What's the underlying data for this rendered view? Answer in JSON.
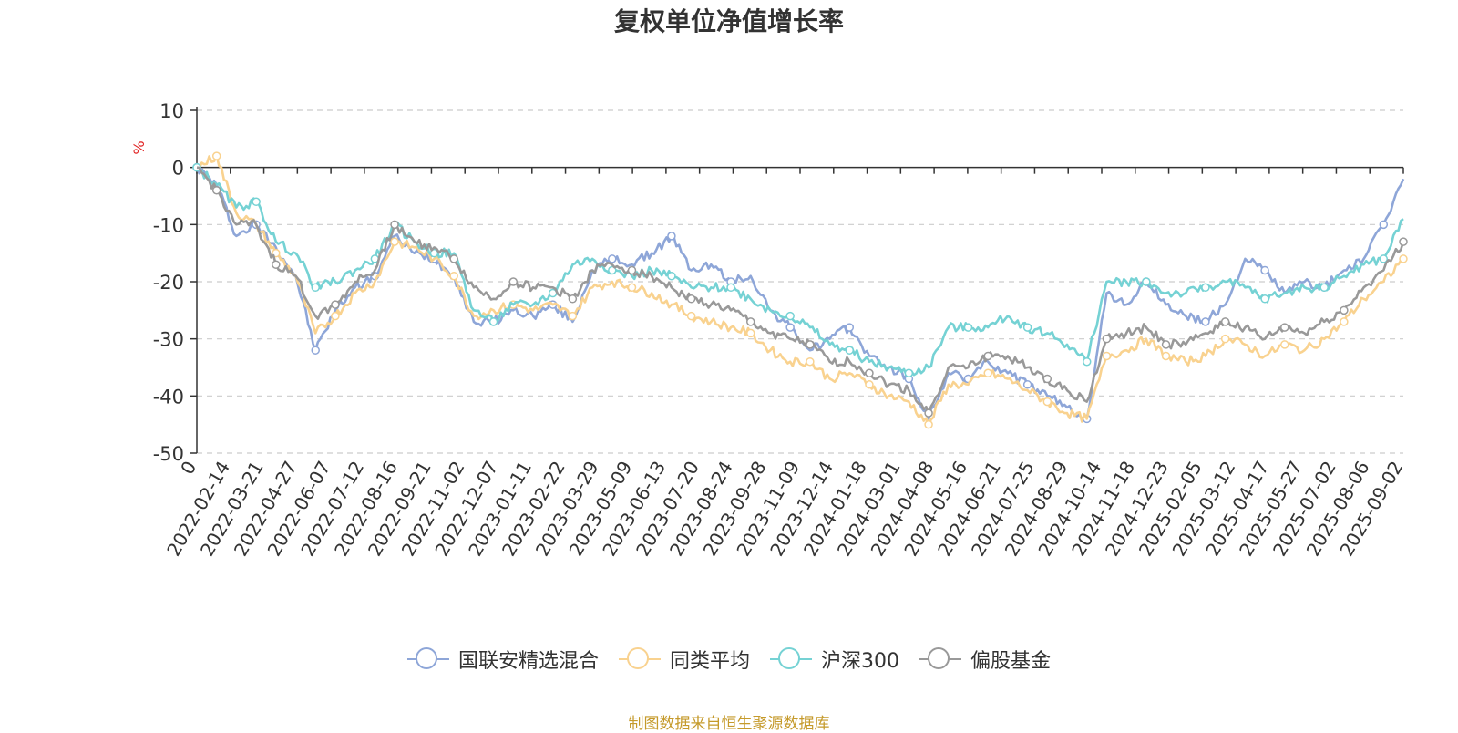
{
  "title": "复权单位净值增长率",
  "source_note": "制图数据来自恒生聚源数据库",
  "chart_data": {
    "type": "line",
    "title": "复权单位净值增长率",
    "ylabel": "%",
    "ylim": [
      -50,
      10
    ],
    "yticks": [
      10,
      0,
      -10,
      -20,
      -30,
      -40,
      -50
    ],
    "x_start_label": "0",
    "x_tick_labels": [
      "2022-02-14",
      "2022-03-21",
      "2022-04-27",
      "2022-06-07",
      "2022-07-12",
      "2022-08-16",
      "2022-09-21",
      "2022-11-02",
      "2022-12-07",
      "2023-01-11",
      "2023-02-22",
      "2023-03-29",
      "2023-05-09",
      "2023-06-13",
      "2023-07-20",
      "2023-08-24",
      "2023-09-28",
      "2023-11-09",
      "2023-12-14",
      "2024-01-18",
      "2024-03-01",
      "2024-04-08",
      "2024-05-16",
      "2024-06-21",
      "2024-07-25",
      "2024-08-29",
      "2024-10-14",
      "2024-11-18",
      "2024-12-23",
      "2025-02-05",
      "2025-03-12",
      "2025-04-17",
      "2025-05-27",
      "2025-07-02",
      "2025-08-06",
      "2025-09-02"
    ],
    "grid": "dashed-horizontal",
    "legend_position": "bottom",
    "series": [
      {
        "name": "国联安精选混合",
        "color": "#8ea6d8",
        "values": [
          0,
          -3,
          -12,
          -10,
          -14,
          -19,
          -32,
          -25,
          -21,
          -19,
          -12,
          -15,
          -16,
          -19,
          -27,
          -27,
          -25,
          -26,
          -24,
          -27,
          -18,
          -16,
          -17,
          -15,
          -12,
          -18,
          -17,
          -20,
          -19,
          -25,
          -28,
          -32,
          -30,
          -28,
          -33,
          -35,
          -37,
          -44,
          -36,
          -37,
          -34,
          -36,
          -38,
          -40,
          -42,
          -44,
          -22,
          -24,
          -20,
          -24,
          -26,
          -27,
          -24,
          -16,
          -18,
          -22,
          -20,
          -21,
          -18,
          -16,
          -10,
          -2
        ]
      },
      {
        "name": "同类平均",
        "color": "#f9d28f",
        "values": [
          0,
          2,
          -8,
          -10,
          -15,
          -19,
          -29,
          -26,
          -22,
          -20,
          -13,
          -14,
          -16,
          -19,
          -26,
          -25,
          -24,
          -25,
          -24,
          -26,
          -21,
          -20,
          -21,
          -22,
          -24,
          -26,
          -27,
          -28,
          -29,
          -32,
          -34,
          -34,
          -37,
          -36,
          -38,
          -40,
          -41,
          -45,
          -38,
          -38,
          -36,
          -37,
          -39,
          -41,
          -43,
          -44,
          -33,
          -32,
          -30,
          -33,
          -34,
          -33,
          -30,
          -31,
          -33,
          -31,
          -32,
          -30,
          -27,
          -23,
          -20,
          -16
        ]
      },
      {
        "name": "沪深300",
        "color": "#75d2d4",
        "values": [
          0,
          -3,
          -7,
          -6,
          -13,
          -15,
          -21,
          -20,
          -18,
          -16,
          -10,
          -13,
          -15,
          -15,
          -25,
          -27,
          -24,
          -24,
          -22,
          -17,
          -16,
          -18,
          -19,
          -18,
          -19,
          -21,
          -21,
          -21,
          -23,
          -25,
          -26,
          -28,
          -31,
          -32,
          -34,
          -35,
          -36,
          -35,
          -28,
          -28,
          -28,
          -26,
          -28,
          -29,
          -31,
          -34,
          -20,
          -20,
          -20,
          -22,
          -22,
          -21,
          -20,
          -21,
          -23,
          -22,
          -21,
          -21,
          -19,
          -17,
          -16,
          -9
        ]
      },
      {
        "name": "偏股基金",
        "color": "#999999",
        "values": [
          0,
          -4,
          -10,
          -10,
          -17,
          -19,
          -26,
          -24,
          -20,
          -18,
          -10,
          -13,
          -14,
          -16,
          -21,
          -23,
          -20,
          -21,
          -21,
          -23,
          -18,
          -17,
          -18,
          -19,
          -21,
          -23,
          -24,
          -25,
          -27,
          -29,
          -30,
          -31,
          -34,
          -34,
          -36,
          -38,
          -39,
          -43,
          -35,
          -35,
          -33,
          -33,
          -35,
          -37,
          -39,
          -41,
          -30,
          -29,
          -28,
          -31,
          -31,
          -29,
          -27,
          -28,
          -30,
          -28,
          -29,
          -27,
          -25,
          -21,
          -18,
          -13
        ]
      }
    ]
  },
  "legend": [
    {
      "label": "国联安精选混合",
      "color": "#8ea6d8"
    },
    {
      "label": "同类平均",
      "color": "#f9d28f"
    },
    {
      "label": "沪深300",
      "color": "#75d2d4"
    },
    {
      "label": "偏股基金",
      "color": "#999999"
    }
  ]
}
